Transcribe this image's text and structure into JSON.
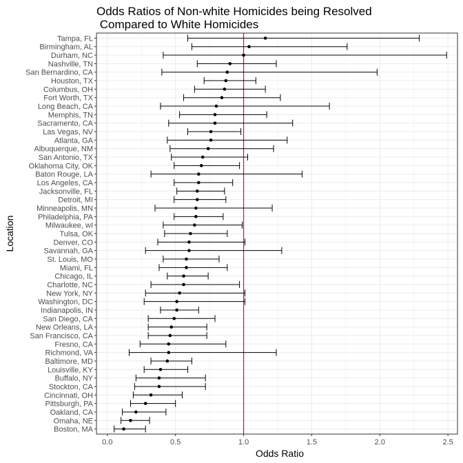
{
  "chart_data": {
    "type": "errorbar",
    "title_lines": [
      "Odds Ratios of Non-white Homicides being Resolved",
      " Compared to White Homicides"
    ],
    "xlabel": "Odds Ratio",
    "ylabel": "Location",
    "xlim": [
      -0.08,
      2.57
    ],
    "xticks": [
      0.0,
      0.5,
      1.0,
      1.5,
      2.0,
      2.5
    ],
    "xtick_labels": [
      "0.0",
      "0.5",
      "1.0",
      "1.5",
      "2.0",
      "2.5"
    ],
    "reference_line": {
      "x": 1.0,
      "color": "#ff0000"
    },
    "grid": true,
    "panel_border": true,
    "point_color": "#000000",
    "categories": [
      "Tampa, FL",
      "Birmingham, AL",
      "Durham, NC",
      "Nashville, TN",
      "San Bernardino, CA",
      "Houston, TX",
      "Columbus, OH",
      "Fort Worth, TX",
      "Long Beach, CA",
      "Memphis, TN",
      "Sacramento, CA",
      "Las Vegas, NV",
      "Atlanta, GA",
      "Albuquerque, NM",
      "San Antonio, TX",
      "Oklahoma City, OK",
      "Baton Rouge, LA",
      "Los Angeles, CA",
      "Jacksonville, FL",
      "Detroit, MI",
      "Minneapolis, MN",
      "Philadelphia, PA",
      "Milwaukee, wI",
      "Tulsa, OK",
      "Denver, CO",
      "Savannah, GA",
      "St. Louis, MO",
      "Miami, FL",
      "Chicago, IL",
      "Charlotte, NC",
      "New York, NY",
      "Washington, DC",
      "Indianapolis, IN",
      "San Diego, CA",
      "New Orleans, LA",
      "San Francisco, CA",
      "Fresno, CA",
      "Richmond, VA",
      "Baltimore, MD",
      "Louisville, KY",
      "Buffalo, NY",
      "Stockton, CA",
      "Cincinnati, OH",
      "Pittsburgh, PA",
      "Oakland, CA",
      "Omaha, NE",
      "Boston, MA"
    ],
    "estimate": [
      1.16,
      1.04,
      1.0,
      0.9,
      0.88,
      0.87,
      0.86,
      0.84,
      0.8,
      0.79,
      0.79,
      0.76,
      0.76,
      0.74,
      0.7,
      0.69,
      0.67,
      0.67,
      0.66,
      0.66,
      0.65,
      0.65,
      0.64,
      0.61,
      0.6,
      0.6,
      0.58,
      0.58,
      0.56,
      0.56,
      0.53,
      0.51,
      0.51,
      0.49,
      0.47,
      0.46,
      0.45,
      0.45,
      0.44,
      0.39,
      0.38,
      0.38,
      0.32,
      0.28,
      0.21,
      0.17,
      0.12
    ],
    "conf_low": [
      0.59,
      0.62,
      0.41,
      0.66,
      0.4,
      0.71,
      0.64,
      0.56,
      0.39,
      0.53,
      0.45,
      0.59,
      0.44,
      0.46,
      0.47,
      0.49,
      0.32,
      0.49,
      0.51,
      0.49,
      0.35,
      0.49,
      0.41,
      0.42,
      0.37,
      0.28,
      0.41,
      0.38,
      0.44,
      0.32,
      0.28,
      0.27,
      0.39,
      0.3,
      0.3,
      0.3,
      0.24,
      0.16,
      0.32,
      0.27,
      0.21,
      0.2,
      0.19,
      0.17,
      0.11,
      0.1,
      0.05
    ],
    "conf_high": [
      2.29,
      1.76,
      2.49,
      1.24,
      1.98,
      1.09,
      1.16,
      1.27,
      1.63,
      1.17,
      1.36,
      0.98,
      1.32,
      1.22,
      1.03,
      0.97,
      1.43,
      0.92,
      0.86,
      0.87,
      1.21,
      0.85,
      0.99,
      0.88,
      1.01,
      1.28,
      0.82,
      0.88,
      0.74,
      0.97,
      1.01,
      1.01,
      0.67,
      0.79,
      0.73,
      0.73,
      0.87,
      1.24,
      0.62,
      0.59,
      0.72,
      0.72,
      0.55,
      0.5,
      0.43,
      0.31,
      0.28
    ]
  }
}
